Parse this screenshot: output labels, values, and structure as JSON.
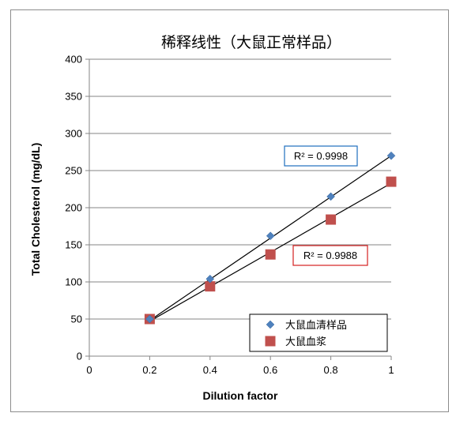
{
  "chart_data": {
    "type": "scatter",
    "title": "稀释线性（大鼠正常样品）",
    "xlabel": "Dilution factor",
    "ylabel": "Total Cholesterol (mg/dL)",
    "xlim": [
      0,
      1
    ],
    "ylim": [
      0,
      400
    ],
    "xticks": [
      0,
      0.2,
      0.4,
      0.6,
      0.8,
      1
    ],
    "xtick_labels": [
      "0",
      "0.2",
      "0.4",
      "0.6",
      "0.8",
      "1"
    ],
    "yticks": [
      0,
      50,
      100,
      150,
      200,
      250,
      300,
      350,
      400
    ],
    "ytick_labels": [
      "0",
      "50",
      "100",
      "150",
      "200",
      "250",
      "300",
      "350",
      "400"
    ],
    "grid": "horizontal",
    "legend_position": "bottom-right",
    "series": [
      {
        "name": "大鼠血清样品",
        "marker": "diamond",
        "color": "#4f81bd",
        "x": [
          0.2,
          0.4,
          0.6,
          0.8,
          1.0
        ],
        "y": [
          50,
          104,
          162,
          215,
          270
        ],
        "trendline": {
          "x": [
            0.2,
            1.0
          ],
          "y": [
            48,
            270
          ]
        },
        "r2_label": "R² = 0.9998",
        "r2_border_color": "#1f6fbf"
      },
      {
        "name": "大鼠血浆",
        "marker": "square",
        "color": "#c0504d",
        "x": [
          0.2,
          0.4,
          0.6,
          0.8,
          1.0
        ],
        "y": [
          50,
          94,
          137,
          184,
          235
        ],
        "trendline": {
          "x": [
            0.2,
            1.0
          ],
          "y": [
            47,
            233
          ]
        },
        "r2_label": "R² = 0.9988",
        "r2_border_color": "#d42020"
      }
    ]
  }
}
